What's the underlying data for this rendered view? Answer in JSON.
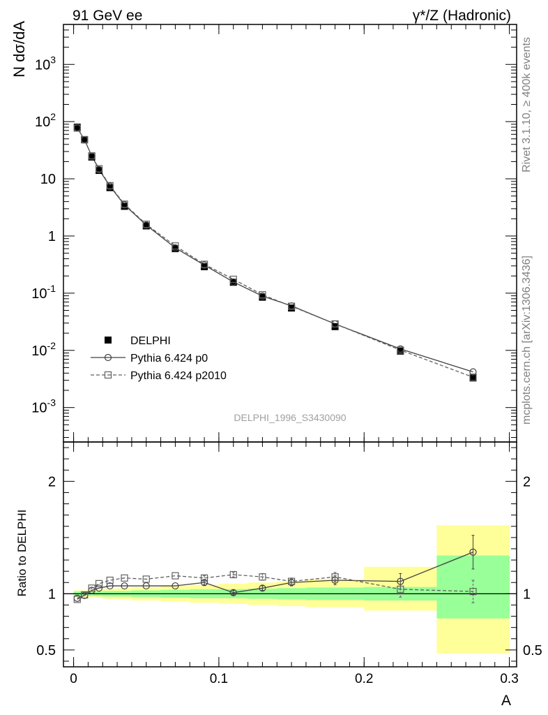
{
  "header": {
    "left": "91 GeV ee",
    "right": "γ*/Z (Hadronic)"
  },
  "side_labels": {
    "rivet": "Rivet 3.1.10, ≥ 400k events",
    "mcplots": "mcplots.cern.ch [arXiv:1306.3436]"
  },
  "watermark": "DELPHI_1996_S3430090",
  "chart_data": [
    {
      "type": "scatter",
      "panel": "main",
      "ylabel": "N dσ/dA",
      "yscale": "log",
      "ylim": [
        0.00025,
        5000
      ],
      "xlim": [
        -0.007,
        0.305
      ],
      "y_ticks": [
        {
          "value": 0.001,
          "base": "10",
          "exp": "-3"
        },
        {
          "value": 0.01,
          "base": "10",
          "exp": "-2"
        },
        {
          "value": 0.1,
          "base": "10",
          "exp": "-1"
        },
        {
          "value": 1,
          "base": "1",
          "exp": ""
        },
        {
          "value": 10,
          "base": "10",
          "exp": ""
        },
        {
          "value": 100,
          "base": "10",
          "exp": "2"
        },
        {
          "value": 1000,
          "base": "10",
          "exp": "3"
        }
      ],
      "x": [
        0.0025,
        0.0075,
        0.0125,
        0.0175,
        0.025,
        0.035,
        0.05,
        0.07,
        0.09,
        0.11,
        0.13,
        0.15,
        0.18,
        0.225,
        0.275
      ],
      "legend_position": "bottom-left",
      "series": [
        {
          "name": "DELPHI",
          "marker": "filled-square",
          "color": "#000000",
          "values": [
            80,
            48,
            24,
            14,
            7,
            3.3,
            1.5,
            0.6,
            0.29,
            0.155,
            0.085,
            0.055,
            0.026,
            0.0097,
            0.0033
          ]
        },
        {
          "name": "Pythia 6.424 p0",
          "marker": "open-circle",
          "line": "solid",
          "color": "#404040",
          "values": [
            78,
            48,
            25,
            14.5,
            7.4,
            3.5,
            1.55,
            0.62,
            0.31,
            0.157,
            0.089,
            0.06,
            0.029,
            0.0106,
            0.0042
          ]
        },
        {
          "name": "Pythia 6.424 p2010",
          "marker": "open-square",
          "line": "dashed",
          "color": "#606060",
          "values": [
            77,
            48.5,
            25.2,
            15,
            7.6,
            3.6,
            1.6,
            0.67,
            0.32,
            0.175,
            0.094,
            0.059,
            0.029,
            0.0101,
            0.0034
          ]
        }
      ]
    },
    {
      "type": "scatter",
      "panel": "ratio",
      "ylabel": "Ratio to DELPHI",
      "xlabel": "A",
      "ylim": [
        0.35,
        2.35
      ],
      "xlim": [
        -0.007,
        0.305
      ],
      "y_ticks": [
        0.5,
        1,
        2
      ],
      "y_tick_labels": [
        "0.5",
        "1",
        "2"
      ],
      "x_ticks": [
        0,
        0.1,
        0.2,
        0.3
      ],
      "x_tick_labels": [
        "0",
        "0.1",
        "0.2",
        "0.3"
      ],
      "bin_edges": [
        0,
        0.005,
        0.01,
        0.015,
        0.02,
        0.03,
        0.04,
        0.06,
        0.08,
        0.1,
        0.12,
        0.14,
        0.16,
        0.2,
        0.25,
        0.3
      ],
      "band_inner": [
        [
          0.98,
          1.02
        ],
        [
          0.985,
          1.015
        ],
        [
          0.98,
          1.02
        ],
        [
          0.98,
          1.02
        ],
        [
          0.975,
          1.025
        ],
        [
          0.975,
          1.025
        ],
        [
          0.97,
          1.03
        ],
        [
          0.965,
          1.035
        ],
        [
          0.96,
          1.04
        ],
        [
          0.96,
          1.04
        ],
        [
          0.955,
          1.045
        ],
        [
          0.95,
          1.05
        ],
        [
          0.945,
          1.055
        ],
        [
          0.94,
          1.06
        ],
        [
          0.78,
          1.34
        ]
      ],
      "band_outer": [
        [
          0.97,
          1.03
        ],
        [
          0.97,
          1.03
        ],
        [
          0.97,
          1.035
        ],
        [
          0.965,
          1.035
        ],
        [
          0.955,
          1.045
        ],
        [
          0.95,
          1.05
        ],
        [
          0.94,
          1.06
        ],
        [
          0.93,
          1.07
        ],
        [
          0.92,
          1.08
        ],
        [
          0.91,
          1.09
        ],
        [
          0.9,
          1.1
        ],
        [
          0.89,
          1.11
        ],
        [
          0.88,
          1.13
        ],
        [
          0.85,
          1.24
        ],
        [
          0.47,
          1.61
        ]
      ],
      "band_colors": {
        "inner": "#99ff99",
        "outer": "#ffff99"
      },
      "x": [
        0.0025,
        0.0075,
        0.0125,
        0.0175,
        0.025,
        0.035,
        0.05,
        0.07,
        0.09,
        0.11,
        0.13,
        0.15,
        0.18,
        0.225,
        0.275
      ],
      "series": [
        {
          "name": "Pythia 6.424 p0",
          "marker": "open-circle",
          "line": "solid",
          "color": "#404040",
          "values": [
            0.96,
            0.985,
            1.03,
            1.05,
            1.07,
            1.07,
            1.07,
            1.07,
            1.1,
            1.01,
            1.05,
            1.1,
            1.12,
            1.11,
            1.37
          ],
          "errors": [
            0.01,
            0.01,
            0.01,
            0.01,
            0.01,
            0.01,
            0.01,
            0.01,
            0.02,
            0.02,
            0.02,
            0.03,
            0.04,
            0.07,
            0.15
          ]
        },
        {
          "name": "Pythia 6.424 p2010",
          "marker": "open-square",
          "line": "dashed",
          "color": "#606060",
          "values": [
            0.95,
            0.99,
            1.05,
            1.09,
            1.12,
            1.14,
            1.13,
            1.16,
            1.14,
            1.17,
            1.15,
            1.11,
            1.15,
            1.04,
            1.02
          ],
          "errors": [
            0.01,
            0.01,
            0.01,
            0.01,
            0.01,
            0.01,
            0.01,
            0.01,
            0.02,
            0.02,
            0.03,
            0.03,
            0.04,
            0.07,
            0.1
          ]
        }
      ]
    }
  ]
}
